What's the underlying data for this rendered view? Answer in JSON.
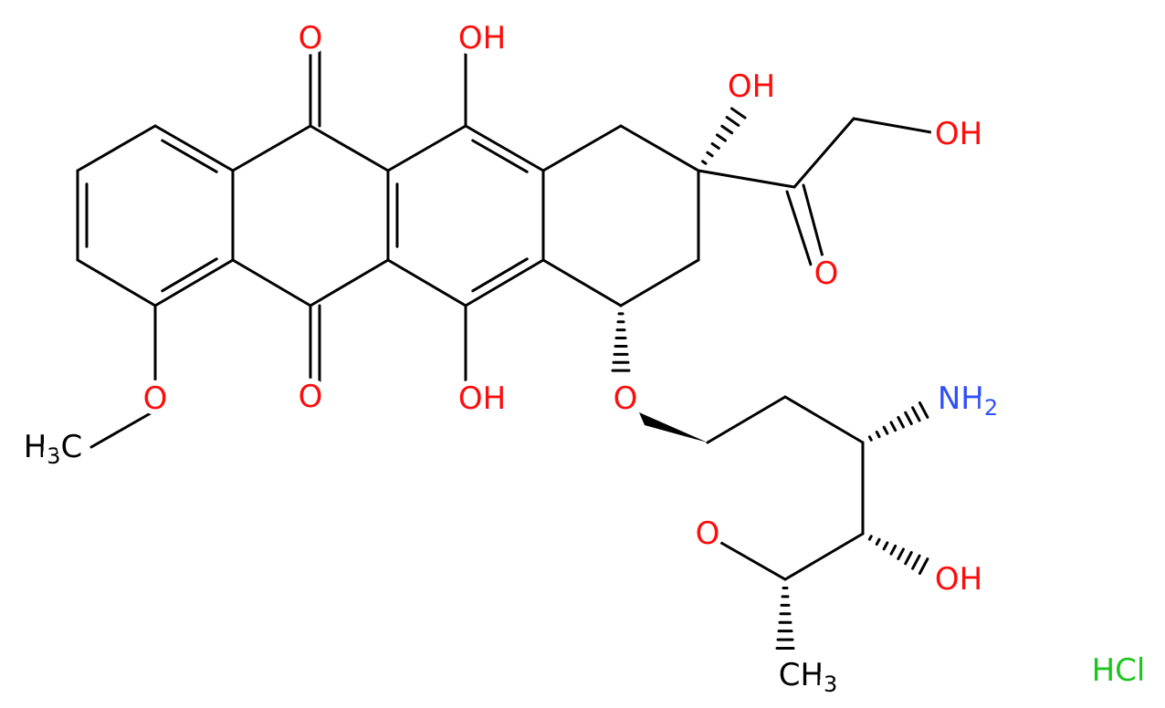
{
  "atoms": [
    {
      "label": "O"
    },
    {
      "label": "OH"
    },
    {
      "label": "OH"
    },
    {
      "label": "OH"
    },
    {
      "label": "O"
    },
    {
      "label": "O"
    },
    {
      "label": "OH"
    },
    {
      "label": "O"
    },
    {
      "label": "NH",
      "sub": "2"
    },
    {
      "label": "O"
    },
    {
      "label": "OH"
    },
    {
      "label": "CH",
      "sub": "3"
    },
    {
      "label": "O"
    },
    {
      "label": "H",
      "sub": "3",
      "suffix": "C"
    },
    {
      "label": "HCl"
    }
  ]
}
